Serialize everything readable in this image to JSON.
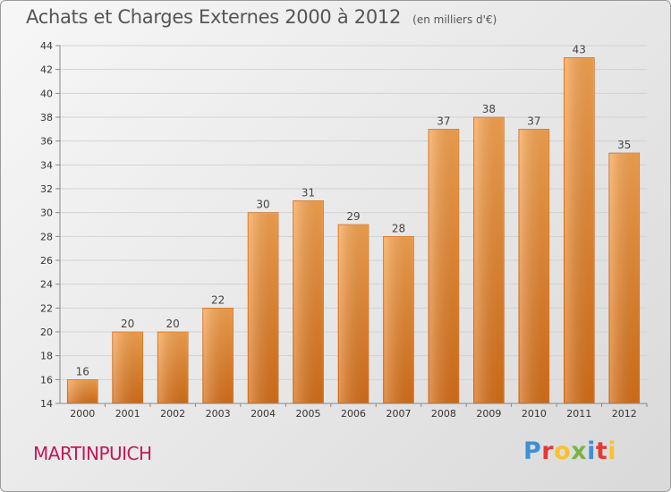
{
  "header": {
    "title": "Achats et Charges Externes 2000 à 2012",
    "subtitle": "(en milliers d'€)"
  },
  "footer": {
    "commune": "MARTINPUICH",
    "logo_letters": [
      "P",
      "r",
      "o",
      "x",
      "i",
      "t",
      "i"
    ],
    "logo_colors": [
      "#3f8fd6",
      "#e53935",
      "#fbc02d",
      "#7cb342",
      "#3f8fd6",
      "#e53935",
      "#fbc02d"
    ]
  },
  "chart_data": {
    "type": "bar",
    "title": "Achats et Charges Externes 2000 à 2012",
    "subtitle": "(en milliers d'€)",
    "categories": [
      "2000",
      "2001",
      "2002",
      "2003",
      "2004",
      "2005",
      "2006",
      "2007",
      "2008",
      "2009",
      "2010",
      "2011",
      "2012"
    ],
    "values": [
      16,
      20,
      20,
      22,
      30,
      31,
      29,
      28,
      37,
      38,
      37,
      43,
      35
    ],
    "ylim": [
      14,
      44
    ],
    "yticks": [
      14,
      16,
      18,
      20,
      22,
      24,
      26,
      28,
      30,
      32,
      34,
      36,
      38,
      40,
      42,
      44
    ],
    "grid": true,
    "bar_color": "#f0963f",
    "bar_dark": "#d9701c"
  }
}
